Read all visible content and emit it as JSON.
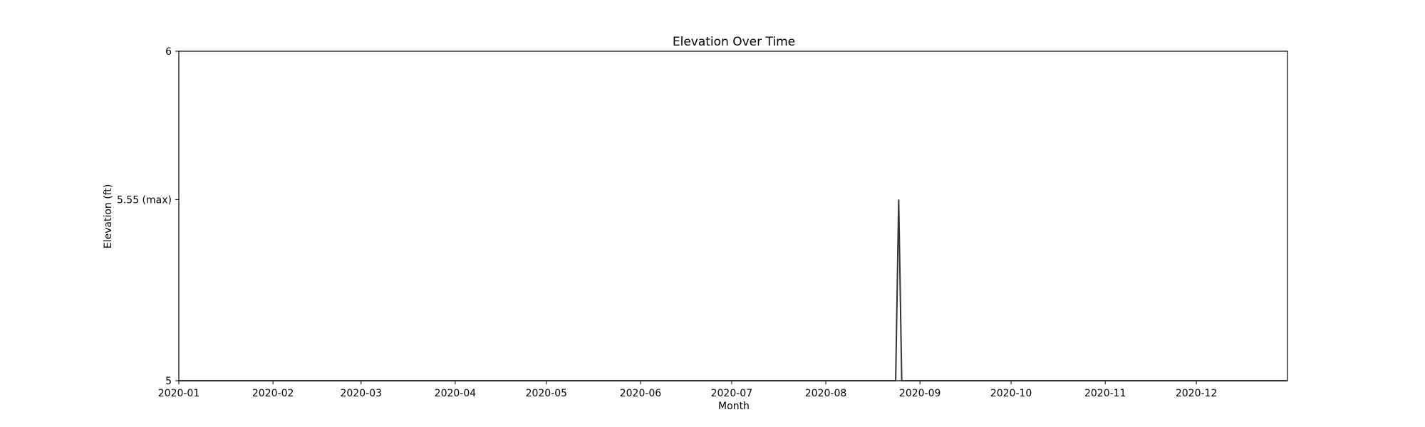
{
  "chart_data": {
    "type": "line",
    "title": "Elevation Over Time",
    "xlabel": "Month",
    "ylabel": "Elevation (ft)",
    "ylim": [
      5,
      6
    ],
    "xlim": [
      "2020-01-01",
      "2020-12-31"
    ],
    "x_ticks": [
      "2020-01",
      "2020-02",
      "2020-03",
      "2020-04",
      "2020-05",
      "2020-06",
      "2020-07",
      "2020-08",
      "2020-09",
      "2020-10",
      "2020-11",
      "2020-12"
    ],
    "y_ticks": [
      {
        "value": 5,
        "label": "5"
      },
      {
        "value": 5.55,
        "label": "5.55 (max)"
      },
      {
        "value": 6,
        "label": "6"
      }
    ],
    "grid": false,
    "series": [
      {
        "color": "#333333",
        "points": [
          {
            "x": "2020-01-01",
            "y": 5.0
          },
          {
            "x": "2020-08-24",
            "y": 5.0
          },
          {
            "x": "2020-08-25",
            "y": 5.55
          },
          {
            "x": "2020-08-26",
            "y": 5.0
          },
          {
            "x": "2020-12-31",
            "y": 5.0
          }
        ]
      }
    ]
  }
}
